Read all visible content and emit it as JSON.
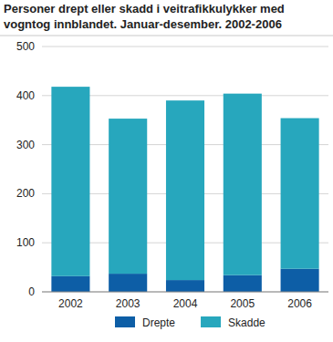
{
  "chart_data": {
    "type": "bar",
    "stacked": true,
    "title": "Personer drept eller skadd i veitrafikkulykker med vogntog innblandet. Januar-desember. 2002-2006",
    "categories": [
      "2002",
      "2003",
      "2004",
      "2005",
      "2006"
    ],
    "series": [
      {
        "name": "Drepte",
        "color": "#0d5ea6",
        "values": [
          32,
          37,
          24,
          34,
          47
        ]
      },
      {
        "name": "Skadde",
        "color": "#27a7bd",
        "values": [
          386,
          316,
          366,
          370,
          307
        ]
      }
    ],
    "ylim": [
      0,
      500
    ],
    "yticks": [
      0,
      100,
      200,
      300,
      400,
      500
    ],
    "grid": true,
    "legend": "bottom"
  }
}
